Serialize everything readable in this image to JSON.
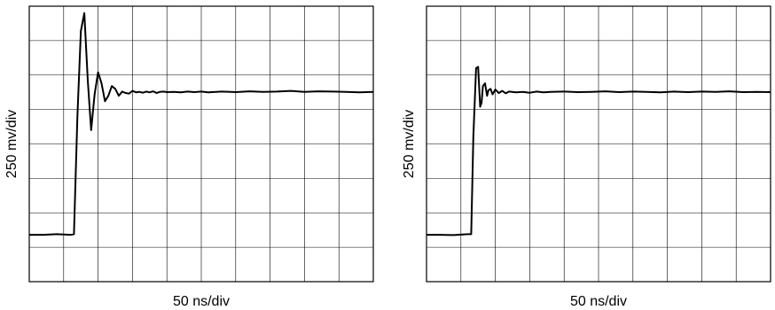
{
  "chart_data": [
    {
      "type": "line",
      "title": "",
      "xlabel": "50 ns/div",
      "ylabel": "250 mv/div",
      "grid": true,
      "x_divisions": 10,
      "y_divisions": 8,
      "xlim": [
        0,
        500
      ],
      "ylim": [
        0,
        2000
      ],
      "series": [
        {
          "x": [
            0,
            20,
            40,
            60,
            65,
            70,
            75,
            80,
            85,
            90,
            95,
            100,
            105,
            110,
            115,
            120,
            125,
            130,
            135,
            140,
            145,
            150,
            155,
            160,
            165,
            170,
            175,
            180,
            185,
            190,
            195,
            200,
            210,
            220,
            230,
            240,
            250,
            260,
            280,
            300,
            320,
            340,
            360,
            380,
            400,
            420,
            440,
            460,
            480,
            500
          ],
          "values": [
            340,
            340,
            345,
            340,
            345,
            1200,
            1820,
            1950,
            1460,
            1100,
            1360,
            1520,
            1440,
            1310,
            1350,
            1420,
            1400,
            1350,
            1380,
            1370,
            1365,
            1385,
            1375,
            1378,
            1372,
            1380,
            1374,
            1382,
            1370,
            1378,
            1380,
            1376,
            1378,
            1374,
            1380,
            1376,
            1380,
            1375,
            1380,
            1376,
            1382,
            1378,
            1380,
            1385,
            1378,
            1382,
            1380,
            1378,
            1375,
            1378
          ]
        }
      ]
    },
    {
      "type": "line",
      "title": "",
      "xlabel": "50 ns/div",
      "ylabel": "250 mv/div",
      "grid": true,
      "x_divisions": 10,
      "y_divisions": 8,
      "xlim": [
        0,
        500
      ],
      "ylim": [
        0,
        2000
      ],
      "series": [
        {
          "x": [
            0,
            20,
            40,
            60,
            65,
            68,
            72,
            75,
            78,
            80,
            82,
            85,
            88,
            90,
            93,
            96,
            100,
            105,
            110,
            115,
            120,
            130,
            140,
            150,
            160,
            170,
            180,
            200,
            220,
            240,
            260,
            280,
            300,
            320,
            340,
            360,
            380,
            400,
            420,
            440,
            460,
            480,
            500
          ],
          "values": [
            340,
            340,
            338,
            345,
            345,
            1050,
            1550,
            1560,
            1270,
            1300,
            1420,
            1440,
            1350,
            1390,
            1400,
            1360,
            1395,
            1370,
            1385,
            1368,
            1380,
            1375,
            1378,
            1372,
            1380,
            1374,
            1378,
            1380,
            1376,
            1378,
            1382,
            1376,
            1380,
            1378,
            1374,
            1380,
            1376,
            1380,
            1378,
            1382,
            1376,
            1378,
            1376
          ]
        }
      ]
    }
  ]
}
